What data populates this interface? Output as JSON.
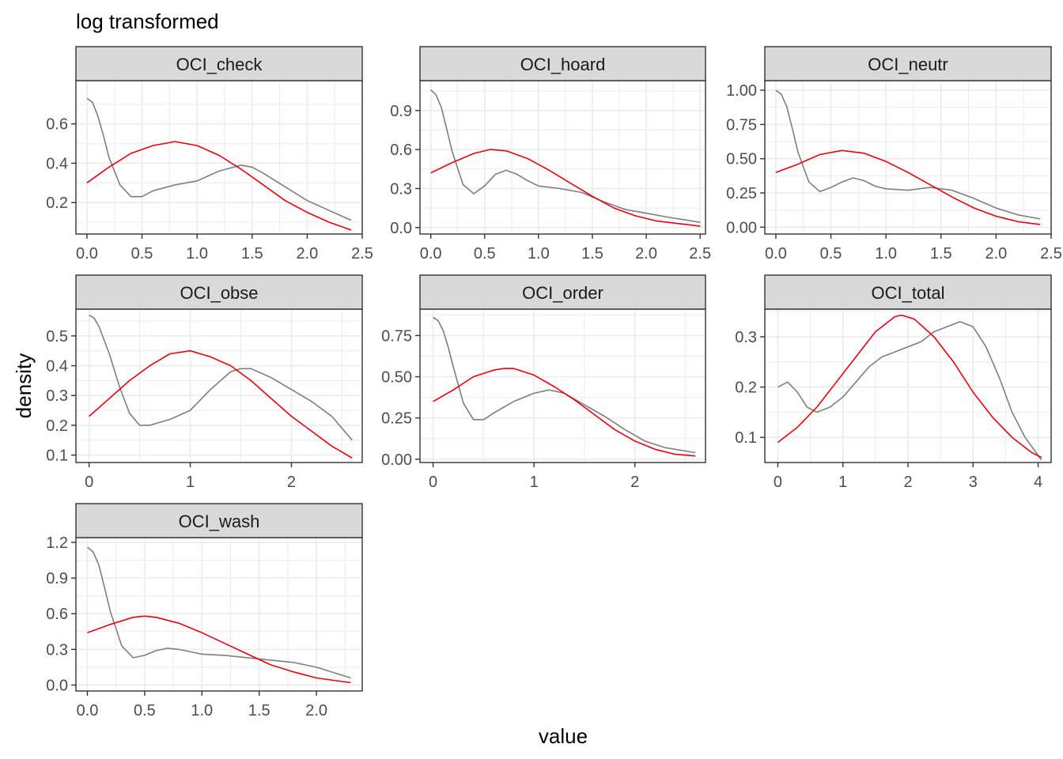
{
  "colors": {
    "empirical": "#7f7f7f",
    "normal": "#e8000b",
    "strip_fill": "#d9d9d9",
    "grid": "#ebebeb",
    "panel_border": "#333333"
  },
  "chart_data": {
    "type": "line",
    "title": "log transformed",
    "xlabel": "value",
    "ylabel": "density",
    "grid": true,
    "legend": "none",
    "panels": [
      {
        "name": "OCI_check",
        "xlim": [
          -0.1,
          2.5
        ],
        "ylim": [
          0.04,
          0.82
        ],
        "xticks": [
          0,
          0.5,
          1,
          1.5,
          2,
          2.5
        ],
        "xtick_labels": [
          "0.0",
          "0.5",
          "1.0",
          "1.5",
          "2.0",
          "2.5"
        ],
        "yticks": [
          0.2,
          0.4,
          0.6
        ],
        "ytick_labels": [
          "0.2",
          "0.4",
          "0.6"
        ],
        "series": [
          {
            "x": [
              0,
              0.05,
              0.1,
              0.15,
              0.2,
              0.3,
              0.4,
              0.5,
              0.6,
              0.8,
              1.0,
              1.2,
              1.4,
              1.5,
              1.6,
              1.8,
              2.0,
              2.2,
              2.4
            ],
            "y": [
              0.73,
              0.71,
              0.64,
              0.54,
              0.43,
              0.29,
              0.23,
              0.23,
              0.26,
              0.29,
              0.31,
              0.36,
              0.39,
              0.38,
              0.35,
              0.28,
              0.21,
              0.16,
              0.11
            ]
          },
          {
            "x": [
              0,
              0.2,
              0.4,
              0.6,
              0.8,
              1.0,
              1.2,
              1.4,
              1.6,
              1.8,
              2.0,
              2.2,
              2.4
            ],
            "y": [
              0.3,
              0.38,
              0.45,
              0.49,
              0.51,
              0.49,
              0.44,
              0.37,
              0.29,
              0.21,
              0.15,
              0.1,
              0.06
            ]
          }
        ]
      },
      {
        "name": "OCI_hoard",
        "xlim": [
          -0.1,
          2.55
        ],
        "ylim": [
          -0.05,
          1.13
        ],
        "xticks": [
          0,
          0.5,
          1,
          1.5,
          2,
          2.5
        ],
        "xtick_labels": [
          "0.0",
          "0.5",
          "1.0",
          "1.5",
          "2.0",
          "2.5"
        ],
        "yticks": [
          0,
          0.3,
          0.6,
          0.9
        ],
        "ytick_labels": [
          "0.0",
          "0.3",
          "0.6",
          "0.9"
        ],
        "series": [
          {
            "x": [
              0,
              0.05,
              0.1,
              0.15,
              0.2,
              0.3,
              0.4,
              0.5,
              0.6,
              0.7,
              0.8,
              0.9,
              1.0,
              1.2,
              1.4,
              1.6,
              1.8,
              2.0,
              2.2,
              2.5
            ],
            "y": [
              1.06,
              1.02,
              0.92,
              0.75,
              0.58,
              0.33,
              0.26,
              0.32,
              0.41,
              0.44,
              0.41,
              0.36,
              0.32,
              0.3,
              0.27,
              0.2,
              0.14,
              0.11,
              0.08,
              0.04
            ]
          },
          {
            "x": [
              0,
              0.2,
              0.4,
              0.55,
              0.7,
              0.9,
              1.1,
              1.3,
              1.5,
              1.7,
              1.9,
              2.1,
              2.3,
              2.5
            ],
            "y": [
              0.42,
              0.5,
              0.57,
              0.6,
              0.59,
              0.53,
              0.44,
              0.34,
              0.24,
              0.15,
              0.09,
              0.05,
              0.03,
              0.01
            ]
          }
        ]
      },
      {
        "name": "OCI_neutr",
        "xlim": [
          -0.1,
          2.5
        ],
        "ylim": [
          -0.05,
          1.07
        ],
        "xticks": [
          0,
          0.5,
          1,
          1.5,
          2,
          2.5
        ],
        "xtick_labels": [
          "0.0",
          "0.5",
          "1.0",
          "1.5",
          "2.0",
          "2.5"
        ],
        "yticks": [
          0,
          0.25,
          0.5,
          0.75,
          1.0
        ],
        "ytick_labels": [
          "0.00",
          "0.25",
          "0.50",
          "0.75",
          "1.00"
        ],
        "series": [
          {
            "x": [
              0,
              0.05,
              0.1,
              0.15,
              0.2,
              0.3,
              0.4,
              0.5,
              0.6,
              0.7,
              0.8,
              0.9,
              1.0,
              1.2,
              1.4,
              1.6,
              1.8,
              2.0,
              2.2,
              2.4
            ],
            "y": [
              1.0,
              0.97,
              0.88,
              0.72,
              0.55,
              0.33,
              0.26,
              0.29,
              0.33,
              0.36,
              0.34,
              0.3,
              0.28,
              0.27,
              0.29,
              0.27,
              0.21,
              0.14,
              0.09,
              0.06
            ]
          },
          {
            "x": [
              0,
              0.2,
              0.4,
              0.6,
              0.8,
              1.0,
              1.2,
              1.4,
              1.6,
              1.8,
              2.0,
              2.2,
              2.4
            ],
            "y": [
              0.4,
              0.46,
              0.53,
              0.56,
              0.54,
              0.48,
              0.4,
              0.31,
              0.22,
              0.14,
              0.08,
              0.04,
              0.02
            ]
          }
        ]
      },
      {
        "name": "OCI_obse",
        "xlim": [
          -0.13,
          2.7
        ],
        "ylim": [
          0.075,
          0.59
        ],
        "xticks": [
          0,
          1,
          2
        ],
        "xtick_labels": [
          "0",
          "1",
          "2"
        ],
        "yticks": [
          0.1,
          0.2,
          0.3,
          0.4,
          0.5
        ],
        "ytick_labels": [
          "0.1",
          "0.2",
          "0.3",
          "0.4",
          "0.5"
        ],
        "series": [
          {
            "x": [
              0,
              0.05,
              0.1,
              0.2,
              0.3,
              0.4,
              0.5,
              0.6,
              0.8,
              1.0,
              1.2,
              1.4,
              1.5,
              1.6,
              1.8,
              2.0,
              2.2,
              2.4,
              2.6
            ],
            "y": [
              0.57,
              0.56,
              0.53,
              0.44,
              0.33,
              0.24,
              0.2,
              0.2,
              0.22,
              0.25,
              0.32,
              0.38,
              0.39,
              0.39,
              0.36,
              0.32,
              0.28,
              0.23,
              0.15
            ]
          },
          {
            "x": [
              0,
              0.2,
              0.4,
              0.6,
              0.8,
              1.0,
              1.2,
              1.4,
              1.6,
              1.8,
              2.0,
              2.2,
              2.4,
              2.6
            ],
            "y": [
              0.23,
              0.29,
              0.35,
              0.4,
              0.44,
              0.45,
              0.43,
              0.4,
              0.35,
              0.29,
              0.23,
              0.18,
              0.13,
              0.09
            ]
          }
        ]
      },
      {
        "name": "OCI_order",
        "xlim": [
          -0.13,
          2.7
        ],
        "ylim": [
          -0.02,
          0.91
        ],
        "xticks": [
          0,
          1,
          2
        ],
        "xtick_labels": [
          "0",
          "1",
          "2"
        ],
        "yticks": [
          0,
          0.25,
          0.5,
          0.75
        ],
        "ytick_labels": [
          "0.00",
          "0.25",
          "0.50",
          "0.75"
        ],
        "series": [
          {
            "x": [
              0,
              0.05,
              0.1,
              0.15,
              0.2,
              0.3,
              0.4,
              0.5,
              0.6,
              0.8,
              1.0,
              1.15,
              1.3,
              1.5,
              1.7,
              1.9,
              2.1,
              2.3,
              2.6
            ],
            "y": [
              0.86,
              0.84,
              0.78,
              0.68,
              0.56,
              0.34,
              0.24,
              0.24,
              0.28,
              0.35,
              0.4,
              0.42,
              0.4,
              0.33,
              0.26,
              0.18,
              0.11,
              0.07,
              0.04
            ]
          },
          {
            "x": [
              0,
              0.2,
              0.4,
              0.6,
              0.7,
              0.8,
              1.0,
              1.2,
              1.4,
              1.6,
              1.8,
              2.0,
              2.2,
              2.4,
              2.6
            ],
            "y": [
              0.35,
              0.42,
              0.5,
              0.54,
              0.55,
              0.55,
              0.51,
              0.44,
              0.36,
              0.27,
              0.18,
              0.11,
              0.06,
              0.03,
              0.02
            ]
          }
        ]
      },
      {
        "name": "OCI_total",
        "xlim": [
          -0.2,
          4.2
        ],
        "ylim": [
          0.05,
          0.355
        ],
        "xticks": [
          0,
          1,
          2,
          3,
          4
        ],
        "xtick_labels": [
          "0",
          "1",
          "2",
          "3",
          "4"
        ],
        "yticks": [
          0.1,
          0.2,
          0.3
        ],
        "ytick_labels": [
          "0.1",
          "0.2",
          "0.3"
        ],
        "series": [
          {
            "x": [
              0,
              0.15,
              0.3,
              0.45,
              0.6,
              0.8,
              1.0,
              1.2,
              1.4,
              1.6,
              1.8,
              2.0,
              2.2,
              2.4,
              2.6,
              2.8,
              3.0,
              3.2,
              3.4,
              3.6,
              3.8,
              4.05
            ],
            "y": [
              0.2,
              0.21,
              0.19,
              0.16,
              0.15,
              0.16,
              0.18,
              0.21,
              0.24,
              0.26,
              0.27,
              0.28,
              0.29,
              0.31,
              0.32,
              0.33,
              0.32,
              0.28,
              0.22,
              0.15,
              0.1,
              0.055
            ]
          },
          {
            "x": [
              0,
              0.3,
              0.6,
              0.9,
              1.2,
              1.5,
              1.8,
              1.9,
              2.1,
              2.4,
              2.7,
              3.0,
              3.3,
              3.6,
              3.9,
              4.05
            ],
            "y": [
              0.09,
              0.12,
              0.16,
              0.21,
              0.26,
              0.31,
              0.34,
              0.343,
              0.335,
              0.3,
              0.25,
              0.19,
              0.14,
              0.1,
              0.07,
              0.06
            ]
          }
        ]
      },
      {
        "name": "OCI_wash",
        "xlim": [
          -0.1,
          2.4
        ],
        "ylim": [
          -0.05,
          1.24
        ],
        "xticks": [
          0,
          0.5,
          1,
          1.5,
          2
        ],
        "xtick_labels": [
          "0.0",
          "0.5",
          "1.0",
          "1.5",
          "2.0"
        ],
        "yticks": [
          0,
          0.3,
          0.6,
          0.9,
          1.2
        ],
        "ytick_labels": [
          "0.0",
          "0.3",
          "0.6",
          "0.9",
          "1.2"
        ],
        "series": [
          {
            "x": [
              0,
              0.05,
              0.1,
              0.15,
              0.2,
              0.3,
              0.4,
              0.5,
              0.6,
              0.7,
              0.8,
              1.0,
              1.2,
              1.4,
              1.6,
              1.8,
              2.0,
              2.3
            ],
            "y": [
              1.16,
              1.12,
              1.01,
              0.82,
              0.62,
              0.33,
              0.23,
              0.25,
              0.29,
              0.31,
              0.3,
              0.26,
              0.25,
              0.23,
              0.21,
              0.19,
              0.15,
              0.06
            ]
          },
          {
            "x": [
              0,
              0.2,
              0.4,
              0.5,
              0.6,
              0.8,
              1.0,
              1.2,
              1.4,
              1.6,
              1.8,
              2.0,
              2.3
            ],
            "y": [
              0.44,
              0.51,
              0.57,
              0.58,
              0.57,
              0.52,
              0.44,
              0.35,
              0.26,
              0.17,
              0.11,
              0.06,
              0.02
            ]
          }
        ]
      }
    ]
  }
}
